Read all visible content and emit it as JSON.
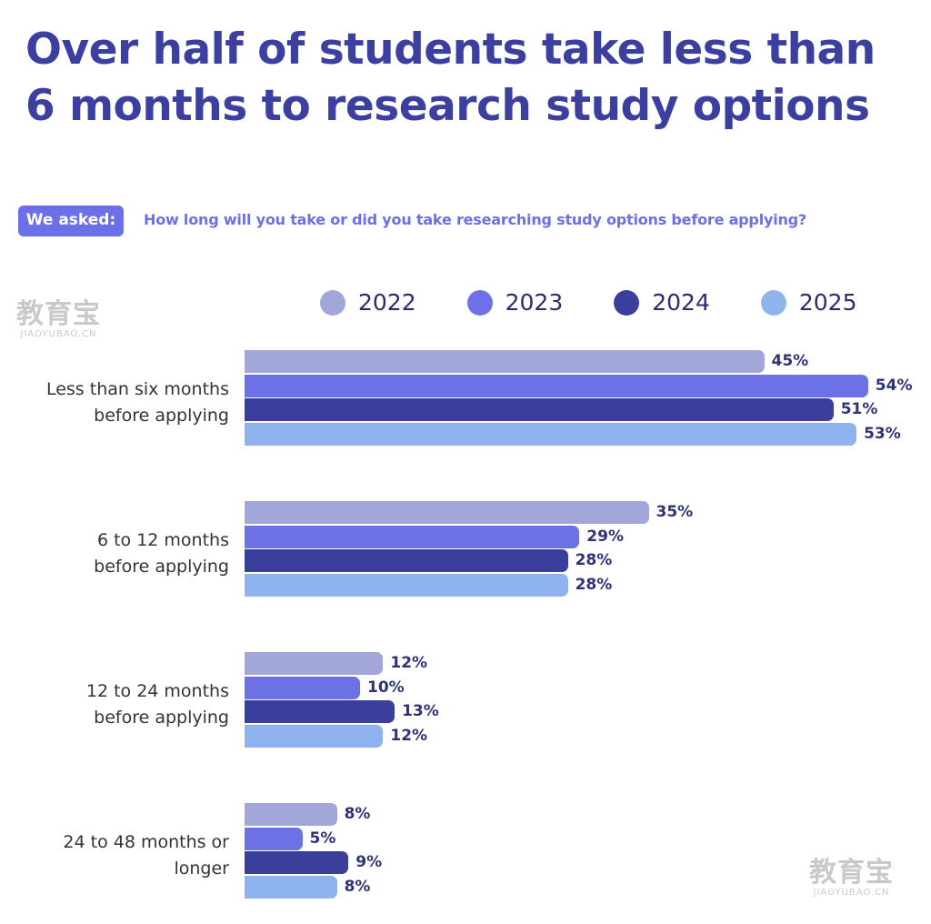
{
  "title": "Over half of students take less than 6 months to research study options",
  "asked_label": "We asked:",
  "question": "How long will you take or did you take researching study options before applying?",
  "watermark": {
    "main": "教育宝",
    "sub": "JIAOYUBAO.CN"
  },
  "colors": {
    "2022": "#a3a6d8",
    "2023": "#6c72e6",
    "2024": "#3a3f9e",
    "2025": "#8fb3ef"
  },
  "chart_data": {
    "type": "bar",
    "orientation": "horizontal",
    "title": "Over half of students take less than 6 months to research study options",
    "categories": [
      "Less than six months before applying",
      "6 to 12 months before applying",
      "12 to 24 months before applying",
      "24 to 48 months or longer"
    ],
    "category_lines": [
      [
        "Less than six months",
        "before applying"
      ],
      [
        "6 to 12 months",
        "before applying"
      ],
      [
        "12 to 24 months",
        "before applying"
      ],
      [
        "24 to 48 months or",
        "longer"
      ]
    ],
    "series": [
      {
        "name": "2022",
        "values": [
          45,
          35,
          12,
          8
        ],
        "labels": [
          "45%",
          "35%",
          "12%",
          "8%"
        ]
      },
      {
        "name": "2023",
        "values": [
          54,
          29,
          10,
          5
        ],
        "labels": [
          "54%",
          "29%",
          "10%",
          "5%"
        ]
      },
      {
        "name": "2024",
        "values": [
          51,
          28,
          13,
          9
        ],
        "labels": [
          "51%",
          "28%",
          "13%",
          "9%"
        ]
      },
      {
        "name": "2025",
        "values": [
          53,
          28,
          12,
          8
        ],
        "labels": [
          "53%",
          "28%",
          "12%",
          "8%"
        ]
      }
    ],
    "unit": "%",
    "legend_position": "top",
    "grid": false
  }
}
